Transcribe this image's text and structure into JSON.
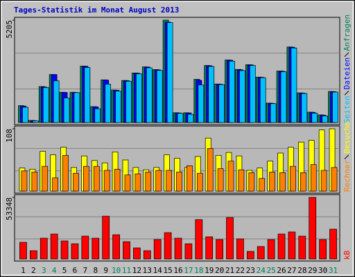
{
  "title": "Tages-Statistik im Monat August 2013",
  "chart_data": [
    {
      "type": "bar",
      "series": [
        {
          "name": "Anfragen",
          "color": "#00805c",
          "values": [
            860,
            110,
            1830,
            2440,
            1540,
            1540,
            2870,
            810,
            2170,
            1650,
            2140,
            2520,
            2830,
            2690,
            5205,
            500,
            500,
            2200,
            2900,
            1960,
            3180,
            2700,
            2940,
            2310,
            990,
            2620,
            3840,
            1510,
            530,
            390,
            1580
          ]
        },
        {
          "name": "Dateien",
          "color": "#0000ff",
          "values": [
            840,
            100,
            1810,
            2440,
            1530,
            1530,
            2860,
            800,
            2160,
            1640,
            2130,
            2510,
            2820,
            2680,
            5100,
            490,
            490,
            2150,
            2890,
            1950,
            3170,
            2680,
            2930,
            2300,
            980,
            2610,
            3830,
            1500,
            520,
            380,
            1570
          ]
        },
        {
          "name": "Seiten",
          "color": "#00c0ff",
          "values": [
            780,
            90,
            1780,
            2120,
            1250,
            1520,
            2800,
            700,
            1950,
            1600,
            2100,
            2480,
            2780,
            2650,
            5080,
            470,
            420,
            1910,
            2850,
            1930,
            3120,
            2640,
            2900,
            2280,
            960,
            2580,
            3790,
            1480,
            480,
            340,
            1550
          ]
        }
      ],
      "ylim": [
        0,
        5205
      ],
      "yticks": [
        5205
      ]
    },
    {
      "type": "bar",
      "series": [
        {
          "name": "Besuche",
          "color": "#ffff00",
          "values": [
            40,
            38,
            69,
            63,
            76,
            41,
            61,
            53,
            49,
            68,
            54,
            41,
            37,
            41,
            63,
            57,
            41,
            60,
            92,
            62,
            67,
            61,
            36,
            40,
            52,
            66,
            76,
            85,
            88,
            106,
            108
          ]
        },
        {
          "name": "Rechner",
          "color": "#ff8000",
          "values": [
            35,
            33,
            43,
            23,
            62,
            31,
            43,
            43,
            36,
            38,
            28,
            30,
            33,
            36,
            36,
            33,
            44,
            31,
            74,
            39,
            52,
            37,
            32,
            22,
            33,
            32,
            43,
            32,
            46,
            36,
            41
          ]
        }
      ],
      "ylim": [
        0,
        108
      ],
      "yticks": [
        108
      ]
    },
    {
      "type": "bar",
      "series": [
        {
          "name": "kB",
          "color": "#ff0000",
          "values": [
            14400,
            7200,
            18000,
            21600,
            15600,
            13200,
            19800,
            18000,
            37100,
            21000,
            15000,
            9600,
            7200,
            16800,
            22800,
            18000,
            13200,
            34100,
            19200,
            16800,
            35900,
            17400,
            6600,
            10800,
            16800,
            21600,
            23400,
            19800,
            53348,
            16800,
            25800
          ]
        }
      ],
      "ylim": [
        0,
        53348
      ],
      "yticks": [
        53348
      ],
      "categories": [
        "1",
        "2",
        "3",
        "4",
        "5",
        "6",
        "7",
        "8",
        "9",
        "10",
        "11",
        "12",
        "13",
        "14",
        "15",
        "16",
        "17",
        "18",
        "19",
        "20",
        "21",
        "22",
        "23",
        "24",
        "25",
        "26",
        "27",
        "28",
        "29",
        "30",
        "31"
      ],
      "category_colors": [
        "#000000",
        "#000000",
        "#00805c",
        "#00805c",
        "#000000",
        "#000000",
        "#000000",
        "#000000",
        "#000000",
        "#00805c",
        "#00805c",
        "#000000",
        "#000000",
        "#000000",
        "#000000",
        "#000000",
        "#00805c",
        "#00805c",
        "#000000",
        "#000000",
        "#000000",
        "#000000",
        "#000000",
        "#00805c",
        "#00805c",
        "#000000",
        "#000000",
        "#000000",
        "#000000",
        "#000000",
        "#00805c"
      ]
    }
  ]
}
